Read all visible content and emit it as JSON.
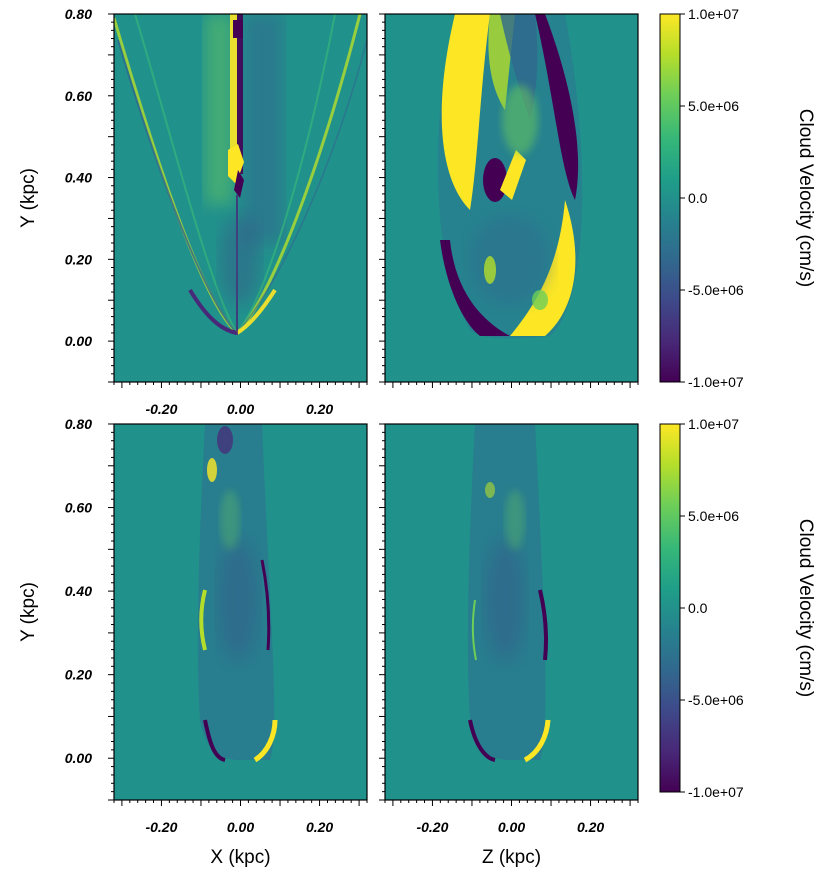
{
  "chart_data": [
    {
      "type": "heatmap",
      "panel": "top-left",
      "xlabel": "",
      "ylabel": "Y (kpc)",
      "xlim": [
        -0.32,
        0.32
      ],
      "ylim": [
        -0.1,
        0.8
      ],
      "xticks": [
        "-0.20",
        "0.00",
        "0.20"
      ],
      "xtick_values": [
        -0.2,
        0.0,
        0.2
      ],
      "yticks": [
        "0.80",
        "0.60",
        "0.40",
        "0.20",
        "0.00"
      ],
      "ytick_values": [
        0.8,
        0.6,
        0.4,
        0.2,
        0.0
      ]
    },
    {
      "type": "heatmap",
      "panel": "top-right",
      "xlabel": "",
      "ylabel": "",
      "xlim": [
        -0.32,
        0.32
      ],
      "ylim": [
        -0.1,
        0.8
      ]
    },
    {
      "type": "heatmap",
      "panel": "bottom-left",
      "xlabel": "X (kpc)",
      "ylabel": "Y (kpc)",
      "xlim": [
        -0.32,
        0.32
      ],
      "ylim": [
        -0.1,
        0.8
      ],
      "xticks": [
        "-0.20",
        "0.00",
        "0.20"
      ],
      "xtick_values": [
        -0.2,
        0.0,
        0.2
      ],
      "yticks": [
        "0.80",
        "0.60",
        "0.40",
        "0.20",
        "0.00"
      ],
      "ytick_values": [
        0.8,
        0.6,
        0.4,
        0.2,
        0.0
      ]
    },
    {
      "type": "heatmap",
      "panel": "bottom-right",
      "xlabel": "Z (kpc)",
      "ylabel": "",
      "xlim": [
        -0.32,
        0.32
      ],
      "ylim": [
        -0.1,
        0.8
      ],
      "xticks": [
        "-0.20",
        "0.00",
        "0.20"
      ],
      "xtick_values": [
        -0.2,
        0.0,
        0.2
      ]
    }
  ],
  "colorbars": [
    {
      "label": "Cloud Velocity (cm/s)",
      "range": [
        -10000000,
        10000000
      ],
      "ticks": [
        "1.0e+07",
        "5.0e+06",
        "0.0",
        "-5.0e+06",
        "-1.0e+07"
      ],
      "tick_values": [
        10000000,
        5000000,
        0,
        -5000000,
        -10000000
      ],
      "colormap": "viridis"
    },
    {
      "label": "Cloud Velocity (cm/s)",
      "range": [
        -10000000,
        10000000
      ],
      "ticks": [
        "1.0e+07",
        "5.0e+06",
        "0.0",
        "-5.0e+06",
        "-1.0e+07"
      ],
      "tick_values": [
        10000000,
        5000000,
        0,
        -5000000,
        -10000000
      ],
      "colormap": "viridis"
    }
  ],
  "colors": {
    "viridis": [
      "#440154",
      "#482878",
      "#3e4989",
      "#31688e",
      "#26828e",
      "#1f9e89",
      "#35b779",
      "#6ece58",
      "#b5de2b",
      "#fde725"
    ],
    "background_field": "#21918c"
  }
}
